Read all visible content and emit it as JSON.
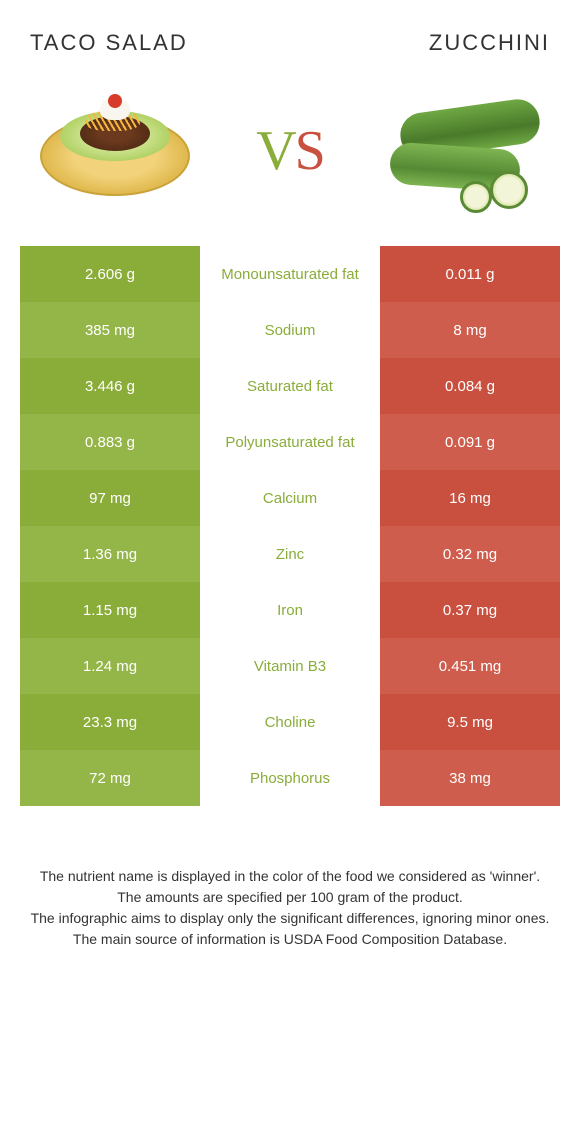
{
  "header": {
    "left_title": "TACO SALAD",
    "right_title": "ZUCCHINI",
    "vs_v": "V",
    "vs_s": "S"
  },
  "colors": {
    "left_bar": "#8aad3a",
    "left_bar_alt": "#94b548",
    "right_bar": "#c94f3f",
    "right_bar_alt": "#cf5d4d",
    "mid_text_left": "#8aad3a",
    "mid_text_right": "#c94f3f",
    "background": "#ffffff"
  },
  "table": {
    "rows": [
      {
        "label": "Monounsaturated fat",
        "left": "2.606 g",
        "right": "0.011 g",
        "winner": "left"
      },
      {
        "label": "Sodium",
        "left": "385 mg",
        "right": "8 mg",
        "winner": "left"
      },
      {
        "label": "Saturated fat",
        "left": "3.446 g",
        "right": "0.084 g",
        "winner": "left"
      },
      {
        "label": "Polyunsaturated fat",
        "left": "0.883 g",
        "right": "0.091 g",
        "winner": "left"
      },
      {
        "label": "Calcium",
        "left": "97 mg",
        "right": "16 mg",
        "winner": "left"
      },
      {
        "label": "Zinc",
        "left": "1.36 mg",
        "right": "0.32 mg",
        "winner": "left"
      },
      {
        "label": "Iron",
        "left": "1.15 mg",
        "right": "0.37 mg",
        "winner": "left"
      },
      {
        "label": "Vitamin B3",
        "left": "1.24 mg",
        "right": "0.451 mg",
        "winner": "left"
      },
      {
        "label": "Choline",
        "left": "23.3 mg",
        "right": "9.5 mg",
        "winner": "left"
      },
      {
        "label": "Phosphorus",
        "left": "72 mg",
        "right": "38 mg",
        "winner": "left"
      }
    ]
  },
  "footer": {
    "line1": "The nutrient name is displayed in the color of the food we considered as 'winner'.",
    "line2": "The amounts are specified per 100 gram of the product.",
    "line3": "The infographic aims to display only the significant differences, ignoring minor ones.",
    "line4": "The main source of information is USDA Food Composition Database."
  }
}
